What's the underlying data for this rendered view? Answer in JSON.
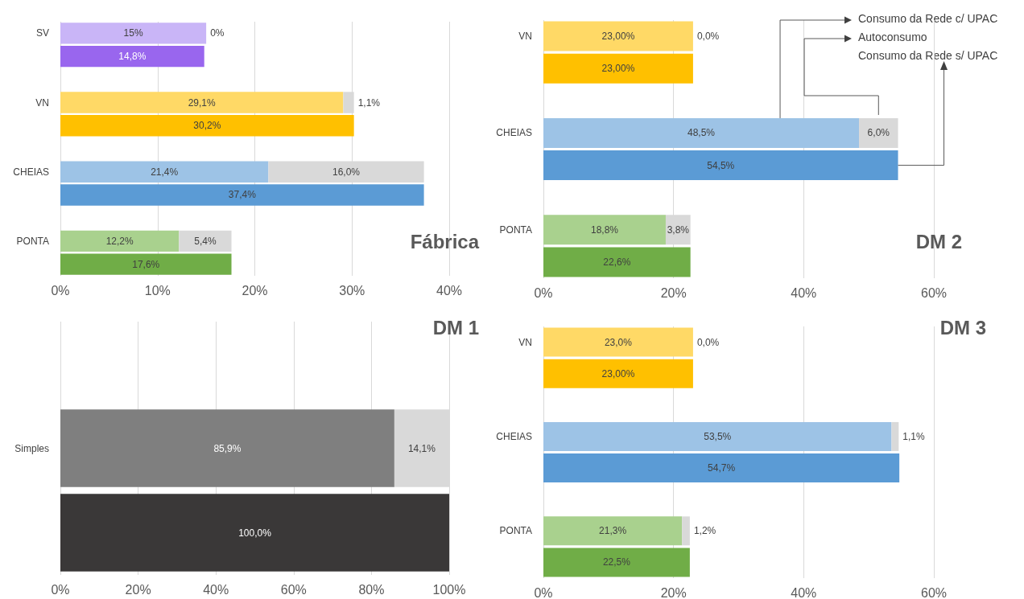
{
  "chart_data": [
    {
      "type": "bar",
      "orientation": "horizontal",
      "stacked": true,
      "title": "Fábrica",
      "categories": [
        "SV",
        null,
        null,
        "VN",
        null,
        null,
        "CHEIAS",
        null,
        null,
        "PONTA",
        null
      ],
      "xlim": [
        0,
        40
      ],
      "xticks": [
        {
          "value": 0,
          "label": "0%"
        },
        {
          "value": 10,
          "label": "10%"
        },
        {
          "value": 20,
          "label": "20%"
        },
        {
          "value": 30,
          "label": "30%"
        },
        {
          "value": 40,
          "label": "40%"
        }
      ],
      "grid": "x",
      "series": [
        {
          "colors": [
            "#c9b5f7",
            null,
            null,
            "#ffd966",
            null,
            null,
            "#9dc3e6",
            null,
            null,
            "#a9d18e",
            null
          ],
          "values": [
            15,
            null,
            null,
            29.1,
            null,
            null,
            21.4,
            null,
            null,
            12.2,
            null
          ],
          "value_labels": [
            "15%",
            null,
            null,
            "29,1%",
            null,
            null,
            "21,4%",
            null,
            null,
            "12,2%",
            null
          ]
        },
        {
          "colors": [
            "#d9d9d9",
            null,
            null,
            "#d9d9d9",
            null,
            null,
            "#d9d9d9",
            null,
            null,
            "#d9d9d9",
            null
          ],
          "values": [
            0,
            null,
            null,
            1.1,
            null,
            null,
            16.0,
            null,
            null,
            5.4,
            null
          ],
          "value_labels": [
            "0%",
            null,
            null,
            "1,1%",
            null,
            null,
            "16,0%",
            null,
            null,
            "5,4%",
            null
          ]
        },
        {
          "colors": [
            null,
            "#9966ee",
            null,
            null,
            "#ffc000",
            null,
            null,
            "#5b9bd5",
            null,
            null,
            "#70ad47"
          ],
          "values": [
            null,
            14.8,
            null,
            null,
            30.2,
            null,
            null,
            37.4,
            null,
            null,
            17.6
          ],
          "value_labels": [
            null,
            "14,8%",
            null,
            null,
            "30,2%",
            null,
            null,
            "37,4%",
            null,
            null,
            "17,6%"
          ]
        }
      ]
    },
    {
      "type": "bar",
      "orientation": "horizontal",
      "stacked": true,
      "title": "DM 2",
      "categories": [
        "VN",
        null,
        null,
        "CHEIAS",
        null,
        null,
        "PONTA",
        null
      ],
      "xlim": [
        0,
        60
      ],
      "xticks": [
        {
          "value": 0,
          "label": "0%"
        },
        {
          "value": 20,
          "label": "20%"
        },
        {
          "value": 40,
          "label": "40%"
        },
        {
          "value": 60,
          "label": "60%"
        }
      ],
      "grid": "x",
      "legend": "top right",
      "series": [
        {
          "name": "Consumo da Rede c/ UPAC",
          "colors": [
            "#ffd966",
            null,
            null,
            "#9dc3e6",
            null,
            null,
            "#a9d18e",
            null
          ],
          "values": [
            23.0,
            null,
            null,
            48.5,
            null,
            null,
            18.8,
            null
          ],
          "value_labels": [
            "23,00%",
            null,
            null,
            "48,5%",
            null,
            null,
            "18,8%",
            null
          ]
        },
        {
          "name": "Autoconsumo",
          "colors": [
            "#d9d9d9",
            null,
            null,
            "#d9d9d9",
            null,
            null,
            "#d9d9d9",
            null
          ],
          "values": [
            0.0,
            null,
            null,
            6.0,
            null,
            null,
            3.8,
            null
          ],
          "value_labels": [
            "0,0%",
            null,
            null,
            "6,0%",
            null,
            null,
            "3,8%",
            null
          ]
        },
        {
          "name": "Consumo da Rede s/ UPAC",
          "colors": [
            null,
            "#ffc000",
            null,
            null,
            "#5b9bd5",
            null,
            null,
            "#70ad47"
          ],
          "values": [
            null,
            23.0,
            null,
            null,
            54.5,
            null,
            null,
            22.6
          ],
          "value_labels": [
            null,
            "23,00%",
            null,
            null,
            "54,5%",
            null,
            null,
            "22,6%"
          ]
        }
      ]
    },
    {
      "type": "bar",
      "orientation": "horizontal",
      "stacked": true,
      "title": "DM 1",
      "categories": [
        null,
        "Simples",
        null
      ],
      "xlim": [
        0,
        100
      ],
      "xticks": [
        {
          "value": 0,
          "label": "0%"
        },
        {
          "value": 20,
          "label": "20%"
        },
        {
          "value": 40,
          "label": "40%"
        },
        {
          "value": 60,
          "label": "60%"
        },
        {
          "value": 80,
          "label": "80%"
        },
        {
          "value": 100,
          "label": "100%"
        }
      ],
      "grid": "x",
      "series": [
        {
          "colors": [
            null,
            "#7f7f7f",
            null
          ],
          "values": [
            null,
            85.9,
            null
          ],
          "value_labels": [
            null,
            "85,9%",
            null
          ]
        },
        {
          "colors": [
            null,
            "#d9d9d9",
            null
          ],
          "values": [
            null,
            14.1,
            null
          ],
          "value_labels": [
            null,
            "14,1%",
            null
          ]
        },
        {
          "colors": [
            null,
            null,
            "#3a3838"
          ],
          "values": [
            null,
            null,
            100.0
          ],
          "value_labels": [
            null,
            null,
            "100,0%"
          ]
        }
      ]
    },
    {
      "type": "bar",
      "orientation": "horizontal",
      "stacked": true,
      "title": "DM 3",
      "categories": [
        "VN",
        null,
        null,
        "CHEIAS",
        null,
        null,
        "PONTA",
        null
      ],
      "xlim": [
        0,
        60
      ],
      "xticks": [
        {
          "value": 0,
          "label": "0%"
        },
        {
          "value": 20,
          "label": "20%"
        },
        {
          "value": 40,
          "label": "40%"
        },
        {
          "value": 60,
          "label": "60%"
        }
      ],
      "grid": "x",
      "series": [
        {
          "colors": [
            "#ffd966",
            null,
            null,
            "#9dc3e6",
            null,
            null,
            "#a9d18e",
            null
          ],
          "values": [
            23.0,
            null,
            null,
            53.5,
            null,
            null,
            21.3,
            null
          ],
          "value_labels": [
            "23,0%",
            null,
            null,
            "53,5%",
            null,
            null,
            "21,3%",
            null
          ]
        },
        {
          "colors": [
            "#d9d9d9",
            null,
            null,
            "#d9d9d9",
            null,
            null,
            "#d9d9d9",
            null
          ],
          "values": [
            0.0,
            null,
            null,
            1.1,
            null,
            null,
            1.2,
            null
          ],
          "value_labels": [
            "0,0%",
            null,
            null,
            "1,1%",
            null,
            null,
            "1,2%",
            null
          ]
        },
        {
          "colors": [
            null,
            "#ffc000",
            null,
            null,
            "#5b9bd5",
            null,
            null,
            "#70ad47"
          ],
          "values": [
            null,
            23.0,
            null,
            null,
            54.7,
            null,
            null,
            22.5
          ],
          "value_labels": [
            null,
            "23,00%",
            null,
            null,
            "54,7%",
            null,
            null,
            "22,5%"
          ]
        }
      ]
    }
  ]
}
